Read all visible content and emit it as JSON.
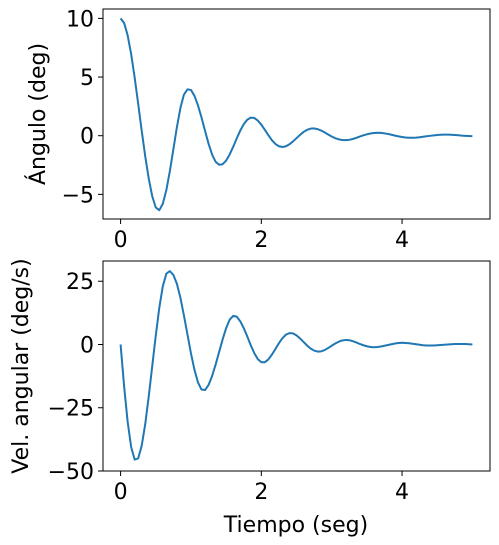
{
  "chart_data": [
    {
      "type": "line",
      "xlabel": "",
      "ylabel": "Ángulo (deg)",
      "xlim": [
        -0.25,
        5.25
      ],
      "ylim": [
        -7.1,
        10.8
      ],
      "xticks": [
        0,
        2,
        4
      ],
      "xtick_labels": [
        "0",
        "2",
        "4"
      ],
      "yticks": [
        -5,
        0,
        5,
        10
      ],
      "ytick_labels": [
        "−5",
        "0",
        "5",
        "10"
      ],
      "grid": false,
      "series": [
        {
          "color": "#1f77b4",
          "x": [
            0,
            0.05,
            0.1,
            0.15,
            0.2,
            0.25,
            0.3,
            0.35,
            0.4,
            0.45,
            0.5,
            0.55,
            0.6,
            0.65,
            0.7,
            0.75,
            0.8,
            0.85,
            0.9,
            0.95,
            1.0,
            1.05,
            1.1,
            1.15,
            1.2,
            1.25,
            1.3,
            1.35,
            1.4,
            1.45,
            1.5,
            1.55,
            1.6,
            1.65,
            1.7,
            1.75,
            1.8,
            1.85,
            1.9,
            1.95,
            2.0,
            2.05,
            2.1,
            2.15,
            2.2,
            2.25,
            2.3,
            2.35,
            2.4,
            2.45,
            2.5,
            2.55,
            2.6,
            2.65,
            2.7,
            2.75,
            2.8,
            2.85,
            2.9,
            2.95,
            3.0,
            3.05,
            3.1,
            3.15,
            3.2,
            3.25,
            3.3,
            3.35,
            3.4,
            3.45,
            3.5,
            3.55,
            3.6,
            3.65,
            3.7,
            3.75,
            3.8,
            3.85,
            3.9,
            3.95,
            4.0,
            4.05,
            4.1,
            4.15,
            4.2,
            4.25,
            4.3,
            4.35,
            4.4,
            4.45,
            4.5,
            4.55,
            4.6,
            4.65,
            4.7,
            4.75,
            4.8,
            4.85,
            4.9,
            4.95,
            5.0
          ],
          "y": [
            10.0,
            9.61,
            8.56,
            6.96,
            4.96,
            2.72,
            0.42,
            -1.75,
            -3.66,
            -5.16,
            -6.12,
            -6.35,
            -5.8,
            -4.64,
            -3.02,
            -1.16,
            0.72,
            2.36,
            3.5,
            3.95,
            3.9,
            3.4,
            2.58,
            1.55,
            0.42,
            -0.68,
            -1.6,
            -2.22,
            -2.48,
            -2.43,
            -2.12,
            -1.6,
            -0.95,
            -0.24,
            0.43,
            0.98,
            1.36,
            1.54,
            1.51,
            1.29,
            0.94,
            0.5,
            0.04,
            -0.38,
            -0.7,
            -0.9,
            -0.96,
            -0.9,
            -0.73,
            -0.49,
            -0.21,
            0.07,
            0.32,
            0.5,
            0.6,
            0.62,
            0.56,
            0.44,
            0.28,
            0.1,
            -0.07,
            -0.21,
            -0.31,
            -0.37,
            -0.38,
            -0.35,
            -0.28,
            -0.18,
            -0.07,
            0.03,
            0.12,
            0.19,
            0.23,
            0.25,
            0.24,
            0.2,
            0.15,
            0.08,
            0.01,
            -0.06,
            -0.11,
            -0.15,
            -0.17,
            -0.17,
            -0.16,
            -0.13,
            -0.09,
            -0.05,
            -0.01,
            0.03,
            0.06,
            0.08,
            0.09,
            0.09,
            0.08,
            0.06,
            0.04,
            0.01,
            -0.01,
            -0.03,
            -0.05
          ]
        }
      ]
    },
    {
      "type": "line",
      "xlabel": "Tiempo (seg)",
      "ylabel": "Vel. angular (deg/s)",
      "xlim": [
        -0.25,
        5.25
      ],
      "ylim": [
        -50,
        33
      ],
      "xticks": [
        0,
        2,
        4
      ],
      "xtick_labels": [
        "0",
        "2",
        "4"
      ],
      "yticks": [
        -50,
        -25,
        0,
        25
      ],
      "ytick_labels": [
        "−50",
        "−25",
        "0",
        "25"
      ],
      "grid": false,
      "series": [
        {
          "color": "#1f77b4",
          "x": [
            0,
            0.05,
            0.1,
            0.15,
            0.2,
            0.25,
            0.3,
            0.35,
            0.4,
            0.45,
            0.5,
            0.55,
            0.6,
            0.65,
            0.7,
            0.75,
            0.8,
            0.85,
            0.9,
            0.95,
            1.0,
            1.05,
            1.1,
            1.15,
            1.2,
            1.25,
            1.3,
            1.35,
            1.4,
            1.45,
            1.5,
            1.55,
            1.6,
            1.65,
            1.7,
            1.75,
            1.8,
            1.85,
            1.9,
            1.95,
            2.0,
            2.05,
            2.1,
            2.15,
            2.2,
            2.25,
            2.3,
            2.35,
            2.4,
            2.45,
            2.5,
            2.55,
            2.6,
            2.65,
            2.7,
            2.75,
            2.8,
            2.85,
            2.9,
            2.95,
            3.0,
            3.05,
            3.1,
            3.15,
            3.2,
            3.25,
            3.3,
            3.35,
            3.4,
            3.45,
            3.5,
            3.55,
            3.6,
            3.65,
            3.7,
            3.75,
            3.8,
            3.85,
            3.9,
            3.95,
            4.0,
            4.05,
            4.1,
            4.15,
            4.2,
            4.25,
            4.3,
            4.35,
            4.4,
            4.45,
            4.5,
            4.55,
            4.6,
            4.65,
            4.7,
            4.75,
            4.8,
            4.85,
            4.9,
            4.95,
            5.0
          ],
          "y": [
            0,
            -16.5,
            -30.5,
            -40.5,
            -45.5,
            -45.0,
            -40.0,
            -31.5,
            -20.5,
            -8.5,
            3.5,
            14.5,
            23.0,
            28.0,
            29.0,
            27.5,
            24.0,
            18.5,
            11.5,
            4.0,
            -3.5,
            -10.0,
            -15.0,
            -17.8,
            -18.0,
            -16.0,
            -12.5,
            -8.0,
            -3.0,
            2.0,
            6.5,
            9.8,
            11.3,
            11.0,
            9.2,
            6.5,
            3.2,
            -0.3,
            -3.4,
            -5.8,
            -7.0,
            -7.0,
            -5.9,
            -4.0,
            -1.8,
            0.5,
            2.5,
            3.9,
            4.5,
            4.4,
            3.6,
            2.4,
            1.0,
            -0.4,
            -1.6,
            -2.4,
            -2.8,
            -2.7,
            -2.2,
            -1.4,
            -0.5,
            0.4,
            1.1,
            1.6,
            1.8,
            1.7,
            1.3,
            0.8,
            0.2,
            -0.3,
            -0.7,
            -1.0,
            -1.1,
            -1.0,
            -0.8,
            -0.5,
            -0.2,
            0.1,
            0.4,
            0.6,
            0.7,
            0.6,
            0.5,
            0.3,
            0.1,
            -0.1,
            -0.3,
            -0.4,
            -0.4,
            -0.4,
            -0.3,
            -0.2,
            -0.1,
            0.0,
            0.1,
            0.2,
            0.2,
            0.2,
            0.2,
            0.1,
            0.0
          ]
        }
      ]
    }
  ]
}
